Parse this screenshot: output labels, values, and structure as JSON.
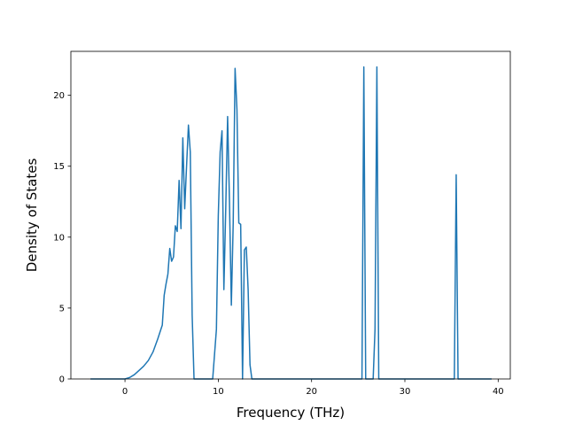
{
  "chart_data": {
    "type": "line",
    "title": "",
    "xlabel": "Frequency (THz)",
    "ylabel": "Density of States",
    "xlim": [
      -5.8,
      41.3
    ],
    "ylim": [
      0,
      23.1
    ],
    "xticks": [
      0,
      10,
      20,
      30,
      40
    ],
    "yticks": [
      0,
      5,
      10,
      15,
      20
    ],
    "grid": false,
    "legend": "none",
    "colors": {
      "line": "#1f77b4",
      "axes": "#000000",
      "background": "#ffffff"
    },
    "series": [
      {
        "x": [
          -3.7,
          0.0,
          0.5,
          1.0,
          1.5,
          2.0,
          2.5,
          3.0,
          3.5,
          4.0,
          4.2,
          4.4,
          4.6,
          4.8,
          5.0,
          5.2,
          5.4,
          5.6,
          5.8,
          6.0,
          6.2,
          6.4,
          6.6,
          6.8,
          7.0,
          7.2,
          7.4,
          7.6,
          7.8,
          8.0,
          8.2,
          8.5,
          9.4,
          9.8,
          10.0,
          10.2,
          10.4,
          10.6,
          10.8,
          11.0,
          11.2,
          11.4,
          11.6,
          11.8,
          12.0,
          12.2,
          12.4,
          12.6,
          12.8,
          13.0,
          13.2,
          13.4,
          13.6,
          13.8,
          14.0,
          14.2,
          14.6,
          25.4,
          25.6,
          25.8,
          26.0,
          26.6,
          26.8,
          27.0,
          27.2,
          35.3,
          35.5,
          35.7,
          35.9,
          39.3
        ],
        "values": [
          0,
          0,
          0.1,
          0.3,
          0.6,
          0.9,
          1.3,
          1.9,
          2.8,
          3.8,
          5.9,
          6.7,
          7.4,
          9.2,
          8.3,
          8.6,
          10.8,
          10.4,
          14.0,
          10.6,
          17.0,
          12.0,
          15.0,
          17.9,
          16.0,
          4.5,
          0,
          0,
          0,
          0,
          0,
          0,
          0,
          3.5,
          11.5,
          16.0,
          17.5,
          6.3,
          12.0,
          18.5,
          12.5,
          5.2,
          11.0,
          21.9,
          19.0,
          11.0,
          10.9,
          0,
          9.1,
          9.3,
          6.3,
          1.0,
          0,
          0,
          0,
          0,
          0,
          0,
          22.0,
          0,
          0,
          0,
          3.5,
          22.0,
          0,
          0,
          14.4,
          0,
          0,
          0
        ]
      }
    ]
  }
}
